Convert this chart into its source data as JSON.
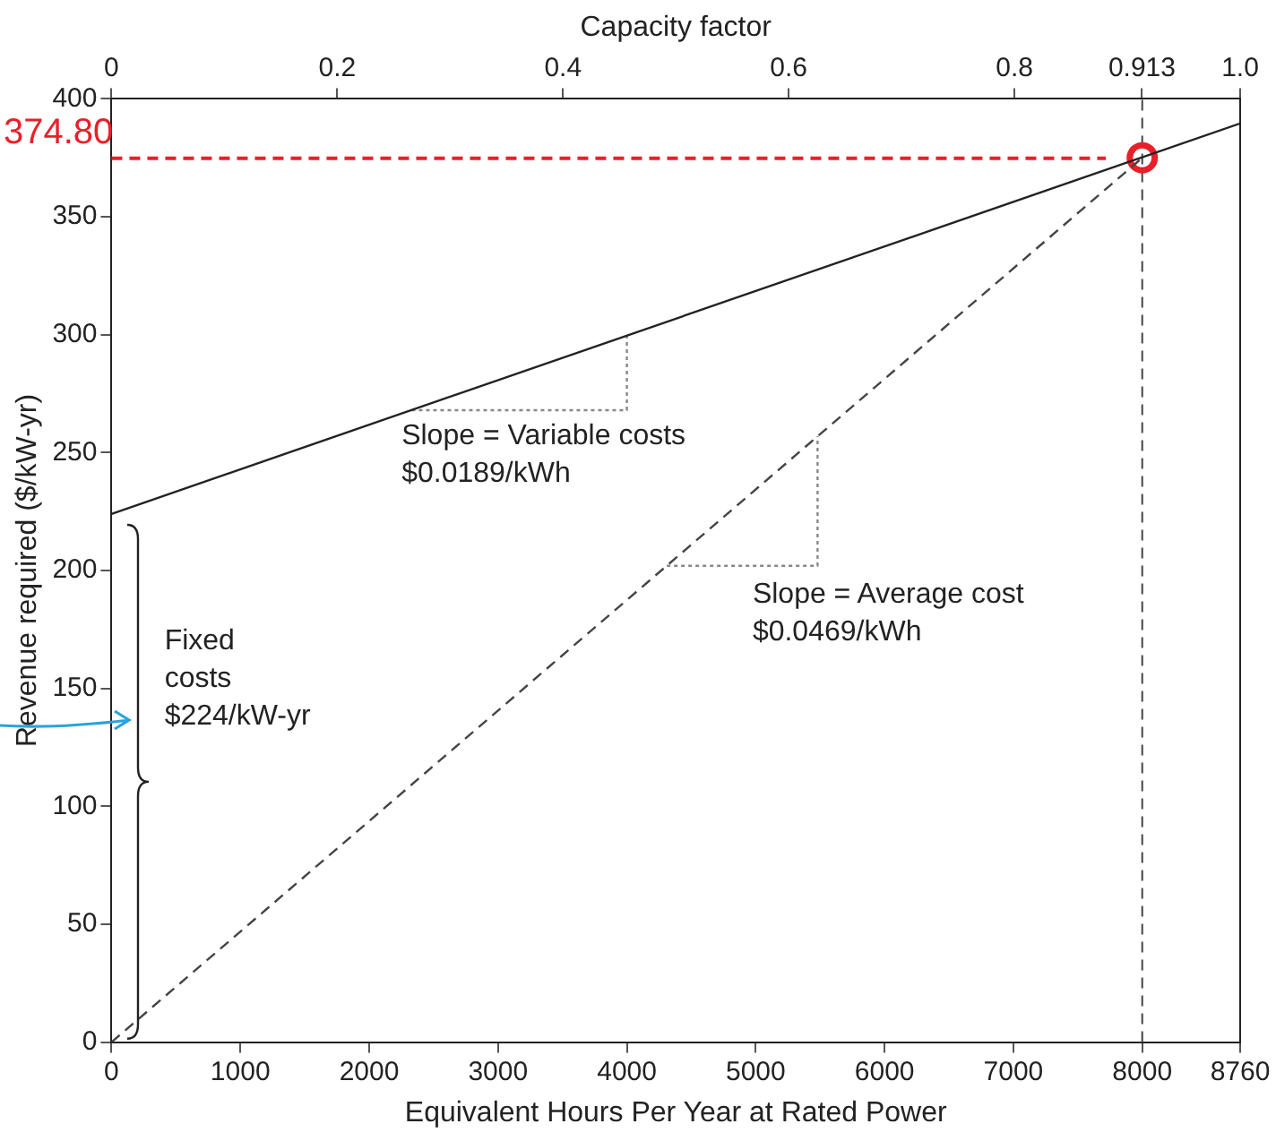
{
  "chart_data": {
    "type": "line",
    "xlabel": "Equivalent Hours Per Year at Rated Power",
    "ylabel": "Revenue required ($/kW-yr)",
    "x2label": "Capacity factor",
    "xlim": [
      0,
      8760
    ],
    "xticks": [
      0,
      1000,
      2000,
      3000,
      4000,
      5000,
      6000,
      7000,
      8000,
      8760
    ],
    "x2lim": [
      0,
      1
    ],
    "x2ticks": [
      0,
      0.2,
      0.4,
      0.6,
      0.8,
      0.913,
      {
        "value": 1,
        "label": "1.0"
      }
    ],
    "ylim": [
      0,
      400
    ],
    "yticks": [
      0,
      50,
      100,
      150,
      200,
      250,
      300,
      350,
      400
    ],
    "grid": false,
    "legend": false,
    "marker": "none",
    "series": [
      {
        "color": "#222222",
        "line_style": "solid",
        "x": [
          0,
          8760
        ],
        "values": [
          224,
          389.6
        ]
      },
      {
        "color": "#444444",
        "line_style": "dashed",
        "x": [
          0,
          8000
        ],
        "values": [
          0,
          375
        ]
      },
      {
        "color": "#888888",
        "line_style": "dotted",
        "x": [
          2330,
          4000,
          4000
        ],
        "values": [
          268,
          268,
          300
        ]
      },
      {
        "color": "#888888",
        "line_style": "dotted",
        "x": [
          4310,
          5480,
          5480
        ],
        "values": [
          202,
          202,
          257
        ]
      },
      {
        "type": "scatter",
        "color": "#e8202a",
        "marker": "circle",
        "x": [
          8000
        ],
        "values": [
          375
        ]
      }
    ],
    "ref_lines": [
      {
        "axis": "x",
        "value": 8000,
        "color": "#444444",
        "line_style": "dashed"
      },
      {
        "axis": "y",
        "value": 374.8,
        "label": "374.80",
        "color": "#e8202a",
        "line_style": "dashed"
      }
    ],
    "annotations": [
      "Slope = Variable costs\n$0.0189/kWh",
      "Slope = Average cost\n$0.0469/kWh",
      "Fixed\ncosts\n$224/kW-yr"
    ]
  }
}
